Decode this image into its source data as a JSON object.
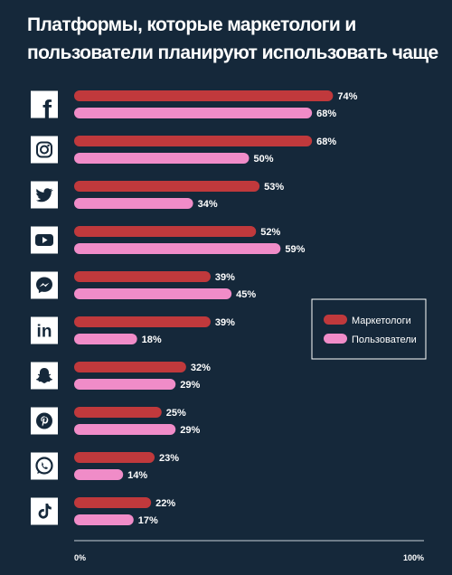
{
  "chart_data": {
    "type": "bar",
    "orientation": "horizontal",
    "title": "Платформы, которые маркетологи и пользователи планируют использовать чаще",
    "categories": [
      "Facebook",
      "Instagram",
      "Twitter",
      "YouTube",
      "Messenger",
      "LinkedIn",
      "Snapchat",
      "Pinterest",
      "WhatsApp",
      "TikTok"
    ],
    "category_icons": [
      "facebook-icon",
      "instagram-icon",
      "twitter-icon",
      "youtube-icon",
      "messenger-icon",
      "linkedin-icon",
      "snapchat-icon",
      "pinterest-icon",
      "whatsapp-icon",
      "tiktok-icon"
    ],
    "series": [
      {
        "name": "Маркетологи",
        "color": "#c0393c",
        "values": [
          74,
          68,
          53,
          52,
          39,
          39,
          32,
          25,
          23,
          22
        ]
      },
      {
        "name": "Пользователи",
        "color": "#f08cc8",
        "values": [
          68,
          50,
          34,
          59,
          45,
          18,
          29,
          29,
          14,
          17
        ]
      }
    ],
    "value_suffix": "%",
    "xlim": [
      0,
      100
    ],
    "x_tick_labels": [
      "0%",
      "100%"
    ],
    "legend_position": "right",
    "grid": false,
    "colors": {
      "background": "#15283a",
      "icon_tile": "#ffffff",
      "icon_glyph": "#15283a",
      "legend_border": "#ffffff"
    }
  }
}
